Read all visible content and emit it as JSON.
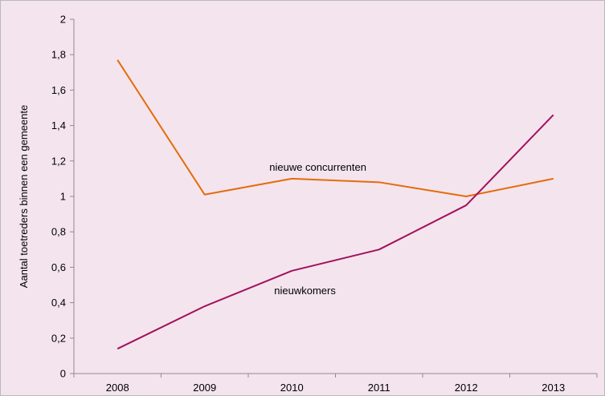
{
  "chart_data": {
    "type": "line",
    "title": "",
    "xlabel": "",
    "ylabel": "Aantal toetreders binnen een gemeente",
    "categories": [
      "2008",
      "2009",
      "2010",
      "2011",
      "2012",
      "2013"
    ],
    "ylim": [
      0,
      2
    ],
    "yticks": [
      "0",
      "0,2",
      "0,4",
      "0,6",
      "0,8",
      "1",
      "1,2",
      "1,4",
      "1,6",
      "1,8",
      "2"
    ],
    "grid": false,
    "legend": "none",
    "series": [
      {
        "label": "nieuwe concurrenten",
        "color": "#e46c0a",
        "values": [
          1.77,
          1.01,
          1.1,
          1.08,
          1.0,
          1.1
        ]
      },
      {
        "label": "nieuwkomers",
        "color": "#a0125c",
        "values": [
          0.14,
          0.38,
          0.58,
          0.7,
          0.95,
          1.46
        ]
      }
    ]
  }
}
